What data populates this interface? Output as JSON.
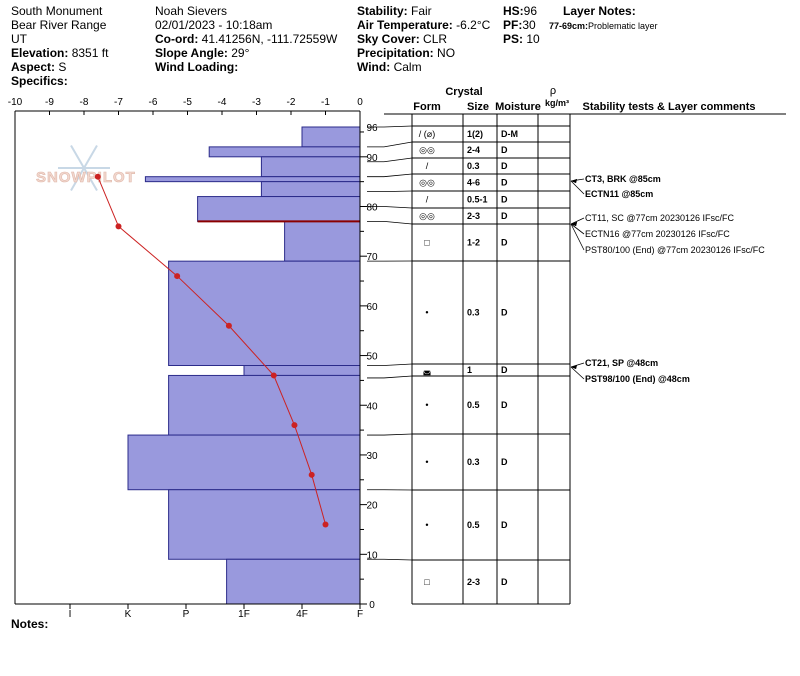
{
  "header": {
    "location": "South Monument",
    "range": "Bear River Range",
    "state": "UT",
    "elevation_label": "Elevation:",
    "elevation_value": "8351 ft",
    "aspect_label": "Aspect:",
    "aspect_value": "S",
    "specifics_label": "Specifics:",
    "observer": "Noah Sievers",
    "datetime": "02/01/2023 - 10:18am",
    "coord_label": "Co-ord:",
    "coord_value": "41.41256N, -111.72559W",
    "slope_label": "Slope Angle:",
    "slope_value": "29°",
    "wind_loading_label": "Wind Loading:",
    "stability_label": "Stability:",
    "stability_value": "Fair",
    "air_temp_label": "Air Temperature:",
    "air_temp_value": "-6.2°C",
    "sky_label": "Sky Cover:",
    "sky_value": "CLR",
    "precip_label": "Precipitation:",
    "precip_value": "NO",
    "wind_label": "Wind:",
    "wind_value": "Calm",
    "hs_label": "HS:",
    "hs_value": "96",
    "pf_label": "PF:",
    "pf_value": "30",
    "ps_label": "PS:",
    "ps_value": "10",
    "layer_notes_label": "Layer Notes:",
    "layer_note": "77-69cm:",
    "layer_note_text": "Problematic layer"
  },
  "notes_label": "Notes:",
  "watermark": "SNOWPILOT",
  "colors": {
    "hardness_fill": "#9999dd",
    "hardness_stroke": "#2b2b8a",
    "temp_line": "#cc2222",
    "weak_layer": "#8b0000"
  },
  "table_headers": {
    "crystal": "Crystal",
    "form": "Form",
    "size": "Size",
    "moisture": "Moisture",
    "rho": "ρ",
    "density_unit": "kg/m³",
    "comments": "Stability tests & Layer comments"
  },
  "chart_data": {
    "type": "snow_profile",
    "temperature_axis": {
      "ticks": [
        "-10",
        "-9",
        "-8",
        "-7",
        "-6",
        "-5",
        "-4",
        "-3",
        "-2",
        "-1",
        "0"
      ],
      "range": [
        -10,
        0
      ]
    },
    "hardness_axis": {
      "ticks": [
        "I",
        "K",
        "P",
        "1F",
        "4F",
        "F"
      ],
      "tick_hardness_values": [
        5.0,
        4.0,
        3.0,
        2.0,
        1.0,
        0.0
      ]
    },
    "depth_axis": {
      "range": [
        0,
        96
      ],
      "ticks": [
        "96",
        "90",
        "80",
        "70",
        "60",
        "50",
        "40",
        "30",
        "20",
        "10",
        "0"
      ],
      "tick_values": [
        96,
        90,
        80,
        70,
        60,
        50,
        40,
        30,
        20,
        10,
        0
      ]
    },
    "hardness_layers": [
      {
        "top": 96,
        "bottom": 92,
        "hardness": 1.0
      },
      {
        "top": 92,
        "bottom": 90,
        "hardness": 2.6
      },
      {
        "top": 90,
        "bottom": 86,
        "hardness": 1.7
      },
      {
        "top": 86,
        "bottom": 85,
        "hardness": 3.7
      },
      {
        "top": 85,
        "bottom": 82,
        "hardness": 1.7
      },
      {
        "top": 82,
        "bottom": 77,
        "hardness": 2.8
      },
      {
        "top": 77,
        "bottom": 69,
        "hardness": 1.3
      },
      {
        "top": 69,
        "bottom": 48,
        "hardness": 3.3
      },
      {
        "top": 48,
        "bottom": 46,
        "hardness": 2.0
      },
      {
        "top": 46,
        "bottom": 34,
        "hardness": 3.3
      },
      {
        "top": 34,
        "bottom": 23,
        "hardness": 4.0
      },
      {
        "top": 23,
        "bottom": 9,
        "hardness": 3.3
      },
      {
        "top": 9,
        "bottom": 0,
        "hardness": 2.3
      }
    ],
    "weak_layer_depth": 77,
    "temperature_profile": [
      {
        "depth": 86,
        "temp": -7.6
      },
      {
        "depth": 76,
        "temp": -7.0
      },
      {
        "depth": 66,
        "temp": -5.3
      },
      {
        "depth": 56,
        "temp": -3.8
      },
      {
        "depth": 46,
        "temp": -2.5
      },
      {
        "depth": 36,
        "temp": -1.9
      },
      {
        "depth": 26,
        "temp": -1.4
      },
      {
        "depth": 16,
        "temp": -1.0
      }
    ],
    "layers_table": [
      {
        "top": 96,
        "bottom": 92,
        "form": "/ (⌀)",
        "size": "1(2)",
        "moisture": "D-M"
      },
      {
        "top": 92,
        "bottom": 89,
        "form": "◎◎",
        "size": "2-4",
        "moisture": "D"
      },
      {
        "top": 89,
        "bottom": 86,
        "form": "/",
        "size": "0.3",
        "moisture": "D"
      },
      {
        "top": 86,
        "bottom": 83,
        "form": "◎◎",
        "size": "4-6",
        "moisture": "D"
      },
      {
        "top": 83,
        "bottom": 80,
        "form": "/",
        "size": "0.5-1",
        "moisture": "D"
      },
      {
        "top": 80,
        "bottom": 77,
        "form": "◎◎",
        "size": "2-3",
        "moisture": "D"
      },
      {
        "top": 77,
        "bottom": 69,
        "form": "□",
        "size": "1-2",
        "moisture": "D"
      },
      {
        "top": 69,
        "bottom": 48,
        "form": "•",
        "size": "0.3",
        "moisture": "D"
      },
      {
        "top": 48,
        "bottom": 45.5,
        "form": "◛",
        "size": "1",
        "moisture": "D"
      },
      {
        "top": 45.5,
        "bottom": 34,
        "form": "•",
        "size": "0.5",
        "moisture": "D"
      },
      {
        "top": 34,
        "bottom": 23,
        "form": "•",
        "size": "0.3",
        "moisture": "D"
      },
      {
        "top": 23,
        "bottom": 9,
        "form": "•",
        "size": "0.5",
        "moisture": "D"
      },
      {
        "top": 9,
        "bottom": 0,
        "form": "□",
        "size": "2-3",
        "moisture": "D"
      }
    ],
    "stability_tests": [
      {
        "depth": 85,
        "text": "CT3, BRK @85cm"
      },
      {
        "depth": 85,
        "text": "ECTN11 @85cm"
      },
      {
        "depth": 77,
        "text": "CT11, SC @77cm  20230126 IFsc/FC"
      },
      {
        "depth": 77,
        "text": "ECTN16 @77cm  20230126 IFsc/FC"
      },
      {
        "depth": 77,
        "text": "PST80/100 (End) @77cm  20230126 IFsc/FC"
      },
      {
        "depth": 48,
        "text": "CT21, SP @48cm"
      },
      {
        "depth": 48,
        "text": "PST98/100 (End) @48cm"
      }
    ]
  }
}
